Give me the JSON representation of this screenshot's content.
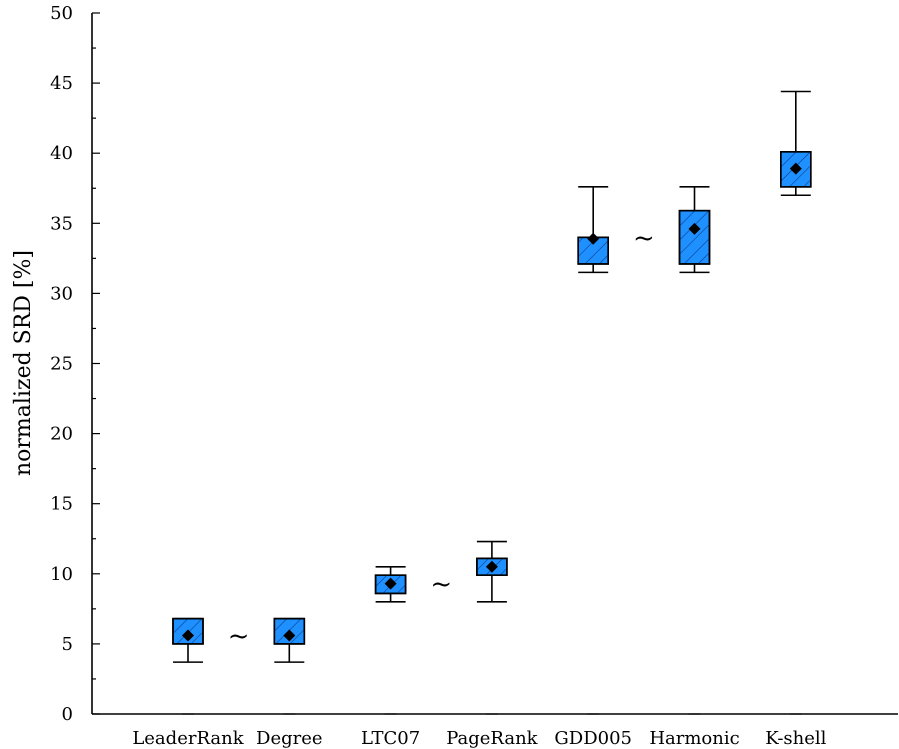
{
  "chart_data": {
    "type": "box",
    "ylabel": "normalized SRD [%]",
    "ylim": [
      0,
      50
    ],
    "yticks": [
      "0",
      "5",
      "10",
      "15",
      "20",
      "25",
      "30",
      "35",
      "40",
      "45",
      "50"
    ],
    "y_minor_step": 2.5,
    "grid": false,
    "box_color": "#1e90ff",
    "categories": [
      "LeaderRank",
      "Degree",
      "LTC07",
      "PageRank",
      "GDD005",
      "Harmonic",
      "K-shell"
    ],
    "boxes": [
      {
        "name": "LeaderRank",
        "min": 3.7,
        "q1": 5.0,
        "q3": 6.8,
        "max": 6.8,
        "mean": 5.6
      },
      {
        "name": "Degree",
        "min": 3.7,
        "q1": 5.0,
        "q3": 6.8,
        "max": 6.8,
        "mean": 5.6
      },
      {
        "name": "LTC07",
        "min": 8.0,
        "q1": 8.6,
        "q3": 9.9,
        "max": 10.5,
        "mean": 9.3
      },
      {
        "name": "PageRank",
        "min": 8.0,
        "q1": 9.9,
        "q3": 11.1,
        "max": 12.3,
        "mean": 10.5
      },
      {
        "name": "GDD005",
        "min": 31.5,
        "q1": 32.1,
        "q3": 34.0,
        "max": 37.6,
        "mean": 33.9
      },
      {
        "name": "Harmonic",
        "min": 31.5,
        "q1": 32.1,
        "q3": 35.9,
        "max": 37.6,
        "mean": 34.6
      },
      {
        "name": "K-shell",
        "min": 37.0,
        "q1": 37.6,
        "q3": 40.1,
        "max": 44.4,
        "mean": 38.9
      }
    ],
    "annotations": [
      {
        "text": "~",
        "between": [
          "LeaderRank",
          "Degree"
        ],
        "y": 5.6
      },
      {
        "text": "~",
        "between": [
          "LTC07",
          "PageRank"
        ],
        "y": 9.3
      },
      {
        "text": "~",
        "between": [
          "GDD005",
          "Harmonic"
        ],
        "y": 34.0
      }
    ]
  }
}
